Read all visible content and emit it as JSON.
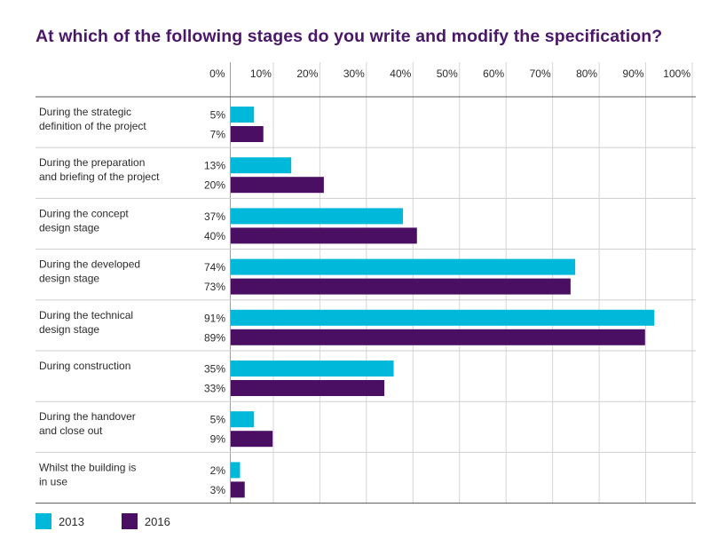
{
  "title": "At which of the following stages do you write and modify the specification?",
  "chart_data": {
    "type": "bar",
    "orientation": "horizontal",
    "title": "At which of the following stages do you write and modify the specification?",
    "xlim": [
      0,
      100
    ],
    "x_ticks": [
      "0%",
      "10%",
      "20%",
      "30%",
      "40%",
      "50%",
      "60%",
      "70%",
      "80%",
      "90%",
      "100%"
    ],
    "x_tick_values": [
      0,
      10,
      20,
      30,
      40,
      50,
      60,
      70,
      80,
      90,
      100
    ],
    "grid": true,
    "legend_position": "bottom-left",
    "categories": [
      [
        "During the strategic",
        "definition of the project"
      ],
      [
        "During the preparation",
        "and briefing of the project"
      ],
      [
        "During the concept",
        "design stage"
      ],
      [
        "During the developed",
        "design stage"
      ],
      [
        "During the technical",
        "design stage"
      ],
      [
        "During construction"
      ],
      [
        "During the handover",
        "and close out"
      ],
      [
        "Whilst the building is",
        "in use"
      ]
    ],
    "series": [
      {
        "name": "2013",
        "color": "#00b8d9",
        "values": [
          5,
          13,
          37,
          74,
          91,
          35,
          5,
          2
        ],
        "labels": [
          "5%",
          "13%",
          "37%",
          "74%",
          "91%",
          "35%",
          "5%",
          "2%"
        ]
      },
      {
        "name": "2016",
        "color": "#4a0f63",
        "values": [
          7,
          20,
          40,
          73,
          89,
          33,
          9,
          3
        ],
        "labels": [
          "7%",
          "20%",
          "40%",
          "73%",
          "89%",
          "33%",
          "9%",
          "3%"
        ]
      }
    ]
  }
}
